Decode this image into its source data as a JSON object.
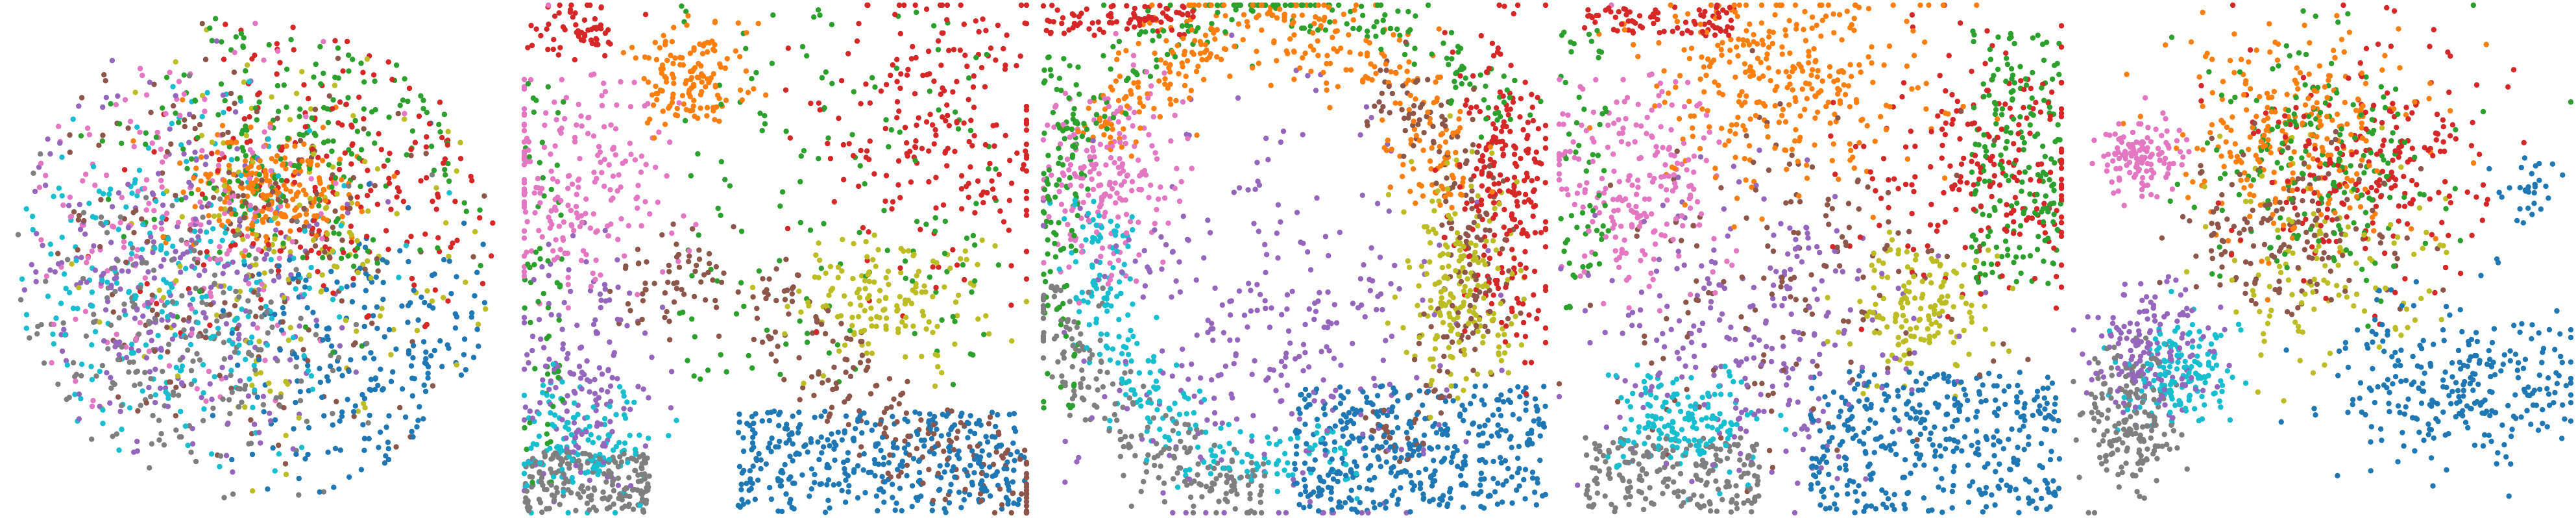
{
  "figure": {
    "panel_count": 5,
    "axes_visible": false,
    "grid": false,
    "legend": "none",
    "text_labels": "none"
  },
  "palette": {
    "blue": "#1f77b4",
    "orange": "#ff7f0e",
    "green": "#2ca02c",
    "red": "#d62728",
    "purple": "#9467bd",
    "brown": "#8c564b",
    "pink": "#e377c2",
    "gray": "#7f7f7f",
    "olive": "#bcbd22",
    "cyan": "#17becf"
  },
  "chart_data": [
    {
      "type": "scatter",
      "panel": 1,
      "shape": "disk",
      "xlim": [
        0,
        1
      ],
      "ylim": [
        0,
        1
      ],
      "clusters": [
        {
          "color": "blue",
          "kind": "blob",
          "center": [
            0.78,
            0.72
          ],
          "spread": [
            0.16,
            0.14
          ],
          "count": 220
        },
        {
          "color": "orange",
          "kind": "blob",
          "center": [
            0.52,
            0.36
          ],
          "spread": [
            0.08,
            0.06
          ],
          "count": 200
        },
        {
          "color": "green",
          "kind": "blob",
          "center": [
            0.6,
            0.25
          ],
          "spread": [
            0.22,
            0.18
          ],
          "count": 220
        },
        {
          "color": "red",
          "kind": "blob",
          "center": [
            0.68,
            0.3
          ],
          "spread": [
            0.2,
            0.18
          ],
          "count": 200
        },
        {
          "color": "purple",
          "kind": "blob",
          "center": [
            0.3,
            0.58
          ],
          "spread": [
            0.18,
            0.18
          ],
          "count": 260
        },
        {
          "color": "brown",
          "kind": "blob",
          "center": [
            0.45,
            0.45
          ],
          "spread": [
            0.22,
            0.22
          ],
          "count": 200
        },
        {
          "color": "pink",
          "kind": "blob",
          "center": [
            0.3,
            0.4
          ],
          "spread": [
            0.18,
            0.18
          ],
          "count": 180
        },
        {
          "color": "gray",
          "kind": "blob",
          "center": [
            0.35,
            0.68
          ],
          "spread": [
            0.18,
            0.16
          ],
          "count": 220
        },
        {
          "color": "olive",
          "kind": "blob",
          "center": [
            0.6,
            0.48
          ],
          "spread": [
            0.2,
            0.2
          ],
          "count": 160
        },
        {
          "color": "cyan",
          "kind": "blob",
          "center": [
            0.3,
            0.55
          ],
          "spread": [
            0.18,
            0.18
          ],
          "count": 260
        }
      ]
    },
    {
      "type": "scatter",
      "panel": 2,
      "shape": "square",
      "xlim": [
        0,
        1
      ],
      "ylim": [
        0,
        1
      ],
      "clusters": [
        {
          "color": "blue",
          "kind": "box",
          "x": [
            0.42,
            1.0
          ],
          "y": [
            0.8,
            1.0
          ],
          "count": 380
        },
        {
          "color": "orange",
          "kind": "blob",
          "center": [
            0.33,
            0.14
          ],
          "spread": [
            0.05,
            0.05
          ],
          "count": 140
        },
        {
          "color": "green",
          "kind": "box",
          "x": [
            0.3,
            0.95
          ],
          "y": [
            0.0,
            0.75
          ],
          "count": 150
        },
        {
          "color": "green",
          "kind": "box",
          "x": [
            0.0,
            0.08
          ],
          "y": [
            0.15,
            0.95
          ],
          "count": 60
        },
        {
          "color": "red",
          "kind": "blob",
          "center": [
            0.83,
            0.22
          ],
          "spread": [
            0.12,
            0.15
          ],
          "count": 220
        },
        {
          "color": "red",
          "kind": "blob",
          "center": [
            0.12,
            0.04
          ],
          "spread": [
            0.05,
            0.03
          ],
          "count": 60
        },
        {
          "color": "purple",
          "kind": "blob",
          "center": [
            0.12,
            0.72
          ],
          "spread": [
            0.07,
            0.12
          ],
          "count": 160
        },
        {
          "color": "brown",
          "kind": "arc",
          "center": [
            1.25,
            0.08
          ],
          "radius": 0.9,
          "angles": [
            100,
            150
          ],
          "width": 0.05,
          "count": 200
        },
        {
          "color": "brown",
          "kind": "blob",
          "center": [
            0.3,
            0.55
          ],
          "spread": [
            0.06,
            0.06
          ],
          "count": 60
        },
        {
          "color": "pink",
          "kind": "blob",
          "center": [
            0.1,
            0.35
          ],
          "spread": [
            0.09,
            0.1
          ],
          "count": 220
        },
        {
          "color": "gray",
          "kind": "box",
          "x": [
            0.0,
            0.25
          ],
          "y": [
            0.88,
            1.0
          ],
          "count": 200
        },
        {
          "color": "olive",
          "kind": "blob",
          "center": [
            0.72,
            0.58
          ],
          "spread": [
            0.1,
            0.06
          ],
          "count": 150
        },
        {
          "color": "cyan",
          "kind": "blob",
          "center": [
            0.12,
            0.86
          ],
          "spread": [
            0.07,
            0.06
          ],
          "count": 130
        }
      ]
    },
    {
      "type": "scatter",
      "panel": 3,
      "shape": "square",
      "xlim": [
        0,
        1
      ],
      "ylim": [
        0,
        1
      ],
      "clusters": [
        {
          "color": "blue",
          "kind": "box",
          "x": [
            0.5,
            1.0
          ],
          "y": [
            0.75,
            1.0
          ],
          "count": 420
        },
        {
          "color": "orange",
          "kind": "arc",
          "center": [
            0.45,
            0.4
          ],
          "radius": 0.36,
          "angles": [
            200,
            360
          ],
          "width": 0.05,
          "count": 340
        },
        {
          "color": "green",
          "kind": "arc",
          "center": [
            0.5,
            0.5
          ],
          "radius": 0.5,
          "angles": [
            190,
            330
          ],
          "width": 0.04,
          "count": 220
        },
        {
          "color": "green",
          "kind": "box",
          "x": [
            0.0,
            0.07
          ],
          "y": [
            0.1,
            0.8
          ],
          "count": 80
        },
        {
          "color": "red",
          "kind": "blob",
          "center": [
            0.92,
            0.35
          ],
          "spread": [
            0.05,
            0.15
          ],
          "count": 240
        },
        {
          "color": "red",
          "kind": "box",
          "x": [
            0.0,
            0.3
          ],
          "y": [
            0.0,
            0.06
          ],
          "count": 80
        },
        {
          "color": "purple",
          "kind": "blob",
          "center": [
            0.45,
            0.62
          ],
          "spread": [
            0.18,
            0.2
          ],
          "count": 300
        },
        {
          "color": "brown",
          "kind": "arc",
          "center": [
            0.45,
            0.5
          ],
          "radius": 0.42,
          "angles": [
            300,
            420
          ],
          "width": 0.04,
          "count": 200
        },
        {
          "color": "pink",
          "kind": "blob",
          "center": [
            0.13,
            0.35
          ],
          "spread": [
            0.07,
            0.1
          ],
          "count": 200
        },
        {
          "color": "gray",
          "kind": "arc",
          "center": [
            0.48,
            0.5
          ],
          "radius": 0.46,
          "angles": [
            95,
            175
          ],
          "width": 0.04,
          "count": 220
        },
        {
          "color": "olive",
          "kind": "blob",
          "center": [
            0.83,
            0.55
          ],
          "spread": [
            0.06,
            0.1
          ],
          "count": 200
        },
        {
          "color": "cyan",
          "kind": "arc",
          "center": [
            0.48,
            0.52
          ],
          "radius": 0.38,
          "angles": [
            70,
            200
          ],
          "width": 0.04,
          "count": 240
        }
      ]
    },
    {
      "type": "scatter",
      "panel": 4,
      "shape": "square",
      "xlim": [
        0,
        1
      ],
      "ylim": [
        0,
        1
      ],
      "clusters": [
        {
          "color": "blue",
          "kind": "box",
          "x": [
            0.5,
            1.0
          ],
          "y": [
            0.72,
            1.0
          ],
          "count": 380
        },
        {
          "color": "orange",
          "kind": "blob",
          "center": [
            0.45,
            0.15
          ],
          "spread": [
            0.14,
            0.1
          ],
          "count": 320
        },
        {
          "color": "green",
          "kind": "box",
          "x": [
            0.82,
            1.0
          ],
          "y": [
            0.05,
            0.55
          ],
          "count": 200
        },
        {
          "color": "green",
          "kind": "box",
          "x": [
            0.0,
            0.1
          ],
          "y": [
            0.05,
            0.6
          ],
          "count": 60
        },
        {
          "color": "red",
          "kind": "blob",
          "center": [
            0.85,
            0.3
          ],
          "spread": [
            0.12,
            0.12
          ],
          "count": 220
        },
        {
          "color": "red",
          "kind": "box",
          "x": [
            0.05,
            0.35
          ],
          "y": [
            0.0,
            0.06
          ],
          "count": 80
        },
        {
          "color": "purple",
          "kind": "blob",
          "center": [
            0.4,
            0.65
          ],
          "spread": [
            0.16,
            0.15
          ],
          "count": 260
        },
        {
          "color": "brown",
          "kind": "blob",
          "center": [
            0.45,
            0.55
          ],
          "spread": [
            0.18,
            0.18
          ],
          "count": 160
        },
        {
          "color": "pink",
          "kind": "blob",
          "center": [
            0.15,
            0.35
          ],
          "spread": [
            0.08,
            0.1
          ],
          "count": 220
        },
        {
          "color": "gray",
          "kind": "box",
          "x": [
            0.05,
            0.4
          ],
          "y": [
            0.85,
            1.0
          ],
          "count": 200
        },
        {
          "color": "olive",
          "kind": "blob",
          "center": [
            0.72,
            0.6
          ],
          "spread": [
            0.07,
            0.06
          ],
          "count": 150
        },
        {
          "color": "cyan",
          "kind": "blob",
          "center": [
            0.25,
            0.82
          ],
          "spread": [
            0.08,
            0.06
          ],
          "count": 160
        }
      ]
    },
    {
      "type": "scatter",
      "panel": 5,
      "shape": "scattered",
      "xlim": [
        0,
        1
      ],
      "ylim": [
        0,
        1
      ],
      "clusters": [
        {
          "color": "blue",
          "kind": "blob",
          "center": [
            0.78,
            0.75
          ],
          "spread": [
            0.12,
            0.08
          ],
          "count": 280
        },
        {
          "color": "blue",
          "kind": "blob",
          "center": [
            0.92,
            0.35
          ],
          "spread": [
            0.04,
            0.03
          ],
          "count": 30
        },
        {
          "color": "orange",
          "kind": "blob",
          "center": [
            0.45,
            0.25
          ],
          "spread": [
            0.12,
            0.1
          ],
          "count": 260
        },
        {
          "color": "green",
          "kind": "blob",
          "center": [
            0.5,
            0.3
          ],
          "spread": [
            0.12,
            0.12
          ],
          "count": 200
        },
        {
          "color": "red",
          "kind": "blob",
          "center": [
            0.6,
            0.3
          ],
          "spread": [
            0.12,
            0.12
          ],
          "count": 220
        },
        {
          "color": "purple",
          "kind": "blob",
          "center": [
            0.17,
            0.68
          ],
          "spread": [
            0.06,
            0.06
          ],
          "count": 160
        },
        {
          "color": "brown",
          "kind": "blob",
          "center": [
            0.45,
            0.45
          ],
          "spread": [
            0.12,
            0.08
          ],
          "count": 150
        },
        {
          "color": "pink",
          "kind": "blob",
          "center": [
            0.15,
            0.3
          ],
          "spread": [
            0.04,
            0.04
          ],
          "count": 120
        },
        {
          "color": "gray",
          "kind": "blob",
          "center": [
            0.12,
            0.82
          ],
          "spread": [
            0.05,
            0.07
          ],
          "count": 180
        },
        {
          "color": "olive",
          "kind": "blob",
          "center": [
            0.5,
            0.5
          ],
          "spread": [
            0.12,
            0.1
          ],
          "count": 120
        },
        {
          "color": "cyan",
          "kind": "blob",
          "center": [
            0.23,
            0.73
          ],
          "spread": [
            0.06,
            0.05
          ],
          "count": 150
        }
      ]
    }
  ]
}
